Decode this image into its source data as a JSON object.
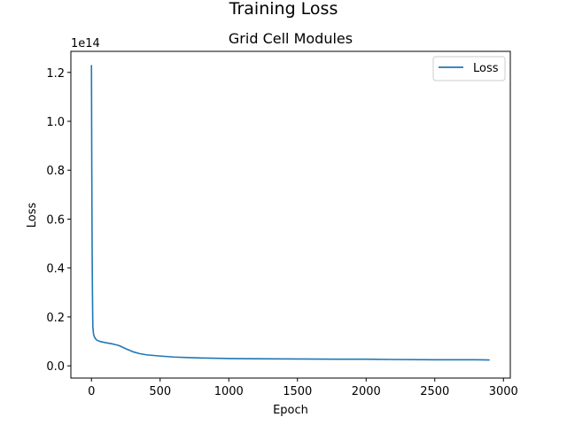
{
  "chart_data": {
    "type": "line",
    "suptitle": "Training Loss",
    "title": "Grid Cell Modules",
    "xlabel": "Epoch",
    "ylabel": "Loss",
    "y_offset_text": "1e14",
    "y_scale_factor": 100000000000000.0,
    "xlim": [
      -150,
      3050
    ],
    "ylim": [
      -0.05,
      1.286
    ],
    "x_ticks": [
      0,
      500,
      1000,
      1500,
      2000,
      2500,
      3000
    ],
    "y_ticks": [
      0.0,
      0.2,
      0.4,
      0.6,
      0.8,
      1.0,
      1.2
    ],
    "grid": false,
    "legend": {
      "position": "top-right",
      "entries": [
        "Loss"
      ]
    },
    "series": [
      {
        "name": "Loss",
        "color": "#1f77b4",
        "x": [
          0,
          2,
          5,
          8,
          10,
          15,
          20,
          30,
          40,
          60,
          100,
          150,
          200,
          250,
          300,
          350,
          400,
          500,
          600,
          700,
          800,
          1000,
          1200,
          1500,
          1800,
          2000,
          2200,
          2500,
          2800,
          2900
        ],
        "y": [
          1.23,
          0.85,
          0.45,
          0.25,
          0.16,
          0.13,
          0.12,
          0.11,
          0.105,
          0.1,
          0.095,
          0.09,
          0.083,
          0.07,
          0.058,
          0.05,
          0.045,
          0.04,
          0.036,
          0.034,
          0.032,
          0.03,
          0.029,
          0.028,
          0.027,
          0.027,
          0.026,
          0.025,
          0.025,
          0.024
        ]
      }
    ]
  }
}
